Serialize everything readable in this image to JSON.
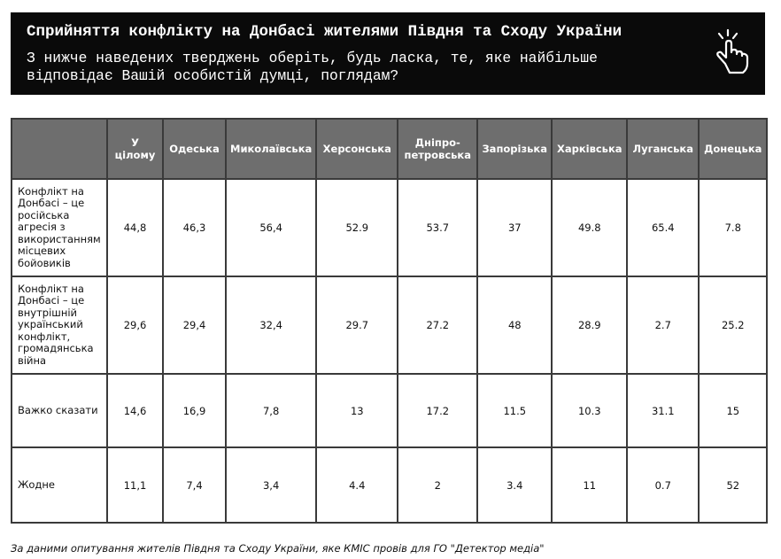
{
  "header": {
    "title": "Сприйняття конфлікту на Донбасі жителями Півдня та Сходу України",
    "subtitle": "З нижче наведених тверджень оберіть, будь ласка, те, яке найбільше відповідає Вашій особистій думці, поглядам?"
  },
  "table": {
    "columns": [
      "У цілому",
      "Одеська",
      "Миколаївська",
      "Херсонська",
      "Дніпро-петровська",
      "Запорізька",
      "Харківська",
      "Луганська",
      "Донецька"
    ],
    "rows": [
      {
        "label": "Конфлікт на Донбасі – це російська агресія з використанням місцевих бойовиків",
        "values": [
          "44,8",
          "46,3",
          "56,4",
          "52.9",
          "53.7",
          "37",
          "49.8",
          "65.4",
          "7.8"
        ]
      },
      {
        "label": "Конфлікт на Донбасі – це внутрішній український конфлікт, громадянська війна",
        "values": [
          "29,6",
          "29,4",
          "32,4",
          "29.7",
          "27.2",
          "48",
          "28.9",
          "2.7",
          "25.2"
        ]
      },
      {
        "label": "Важко сказати",
        "values": [
          "14,6",
          "16,9",
          "7,8",
          "13",
          "17.2",
          "11.5",
          "10.3",
          "31.1",
          "15"
        ]
      },
      {
        "label": "Жодне",
        "values": [
          "11,1",
          "7,4",
          "3,4",
          "4.4",
          "2",
          "3.4",
          "11",
          "0.7",
          "52"
        ]
      }
    ]
  },
  "footer": {
    "source": "За даними опитування жителів Півдня та Сходу України, яке КМІС провів для ГО \"Детектор медіа\""
  }
}
